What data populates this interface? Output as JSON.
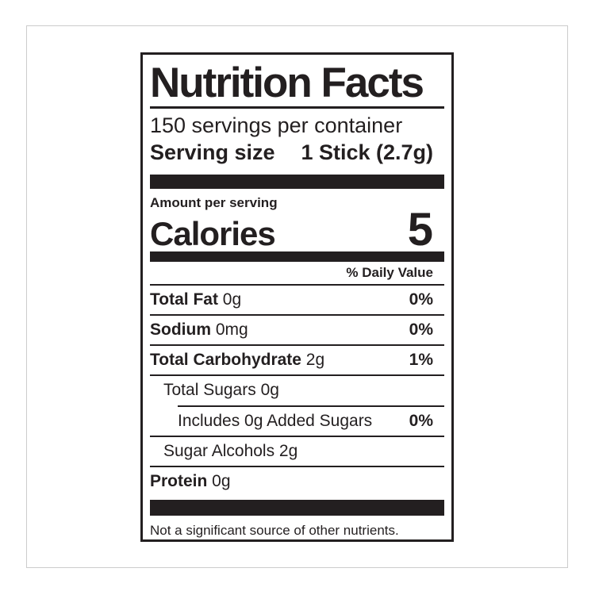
{
  "label": {
    "title": "Nutrition Facts",
    "servings_per_container": "150 servings per container",
    "serving_size_label": "Serving size",
    "serving_size_value": "1 Stick (2.7g)",
    "amount_per_serving": "Amount per serving",
    "calories_label": "Calories",
    "calories_value": "5",
    "daily_value_header": "% Daily Value",
    "nutrients": [
      {
        "bold": "Total Fat",
        "rest": " 0g",
        "dv": "0%"
      },
      {
        "bold": "Sodium",
        "rest": " 0mg",
        "dv": "0%"
      },
      {
        "bold": "Total Carbohydrate",
        "rest": " 2g",
        "dv": "1%"
      },
      {
        "bold": "",
        "rest": "Total Sugars 0g",
        "dv": ""
      },
      {
        "bold": "",
        "rest": "Includes 0g Added Sugars",
        "dv": "0%"
      },
      {
        "bold": "",
        "rest": "Sugar Alcohols 2g",
        "dv": ""
      },
      {
        "bold": "Protein",
        "rest": " 0g",
        "dv": ""
      }
    ],
    "footnote": "Not a significant source of other nutrients.",
    "colors": {
      "text": "#231f20",
      "frame_border": "#cccccc",
      "background": "#ffffff"
    }
  }
}
